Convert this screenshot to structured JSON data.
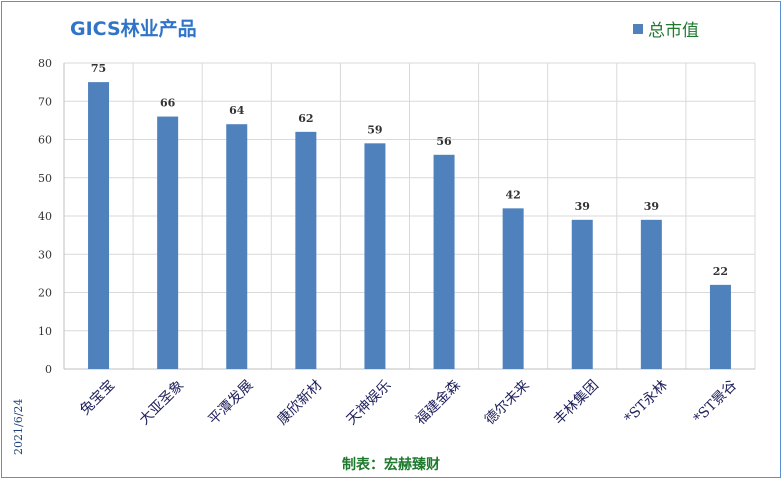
{
  "header": {
    "title": "GICS林业产品"
  },
  "legend": {
    "label": "总市值",
    "color": "#4f81bd"
  },
  "meta": {
    "date": "2021/6/24",
    "footer": "制表：宏赫臻财"
  },
  "chart_data": {
    "type": "bar",
    "title": "GICS林业产品",
    "categories": [
      "兔宝宝",
      "大亚圣象",
      "平潭发展",
      "康欣新材",
      "天神娱乐",
      "福建金森",
      "德尔未来",
      "丰林集团",
      "*ST永林",
      "*ST景谷"
    ],
    "series": [
      {
        "name": "总市值",
        "values": [
          75,
          66,
          64,
          62,
          59,
          56,
          42,
          39,
          39,
          22
        ]
      }
    ],
    "xlabel": "",
    "ylabel": "",
    "ylim": [
      0,
      80
    ],
    "yticks": [
      0,
      10,
      20,
      30,
      40,
      50,
      60,
      70,
      80
    ],
    "grid": true,
    "legend_position": "top-right",
    "bar_color": "#4f81bd"
  }
}
